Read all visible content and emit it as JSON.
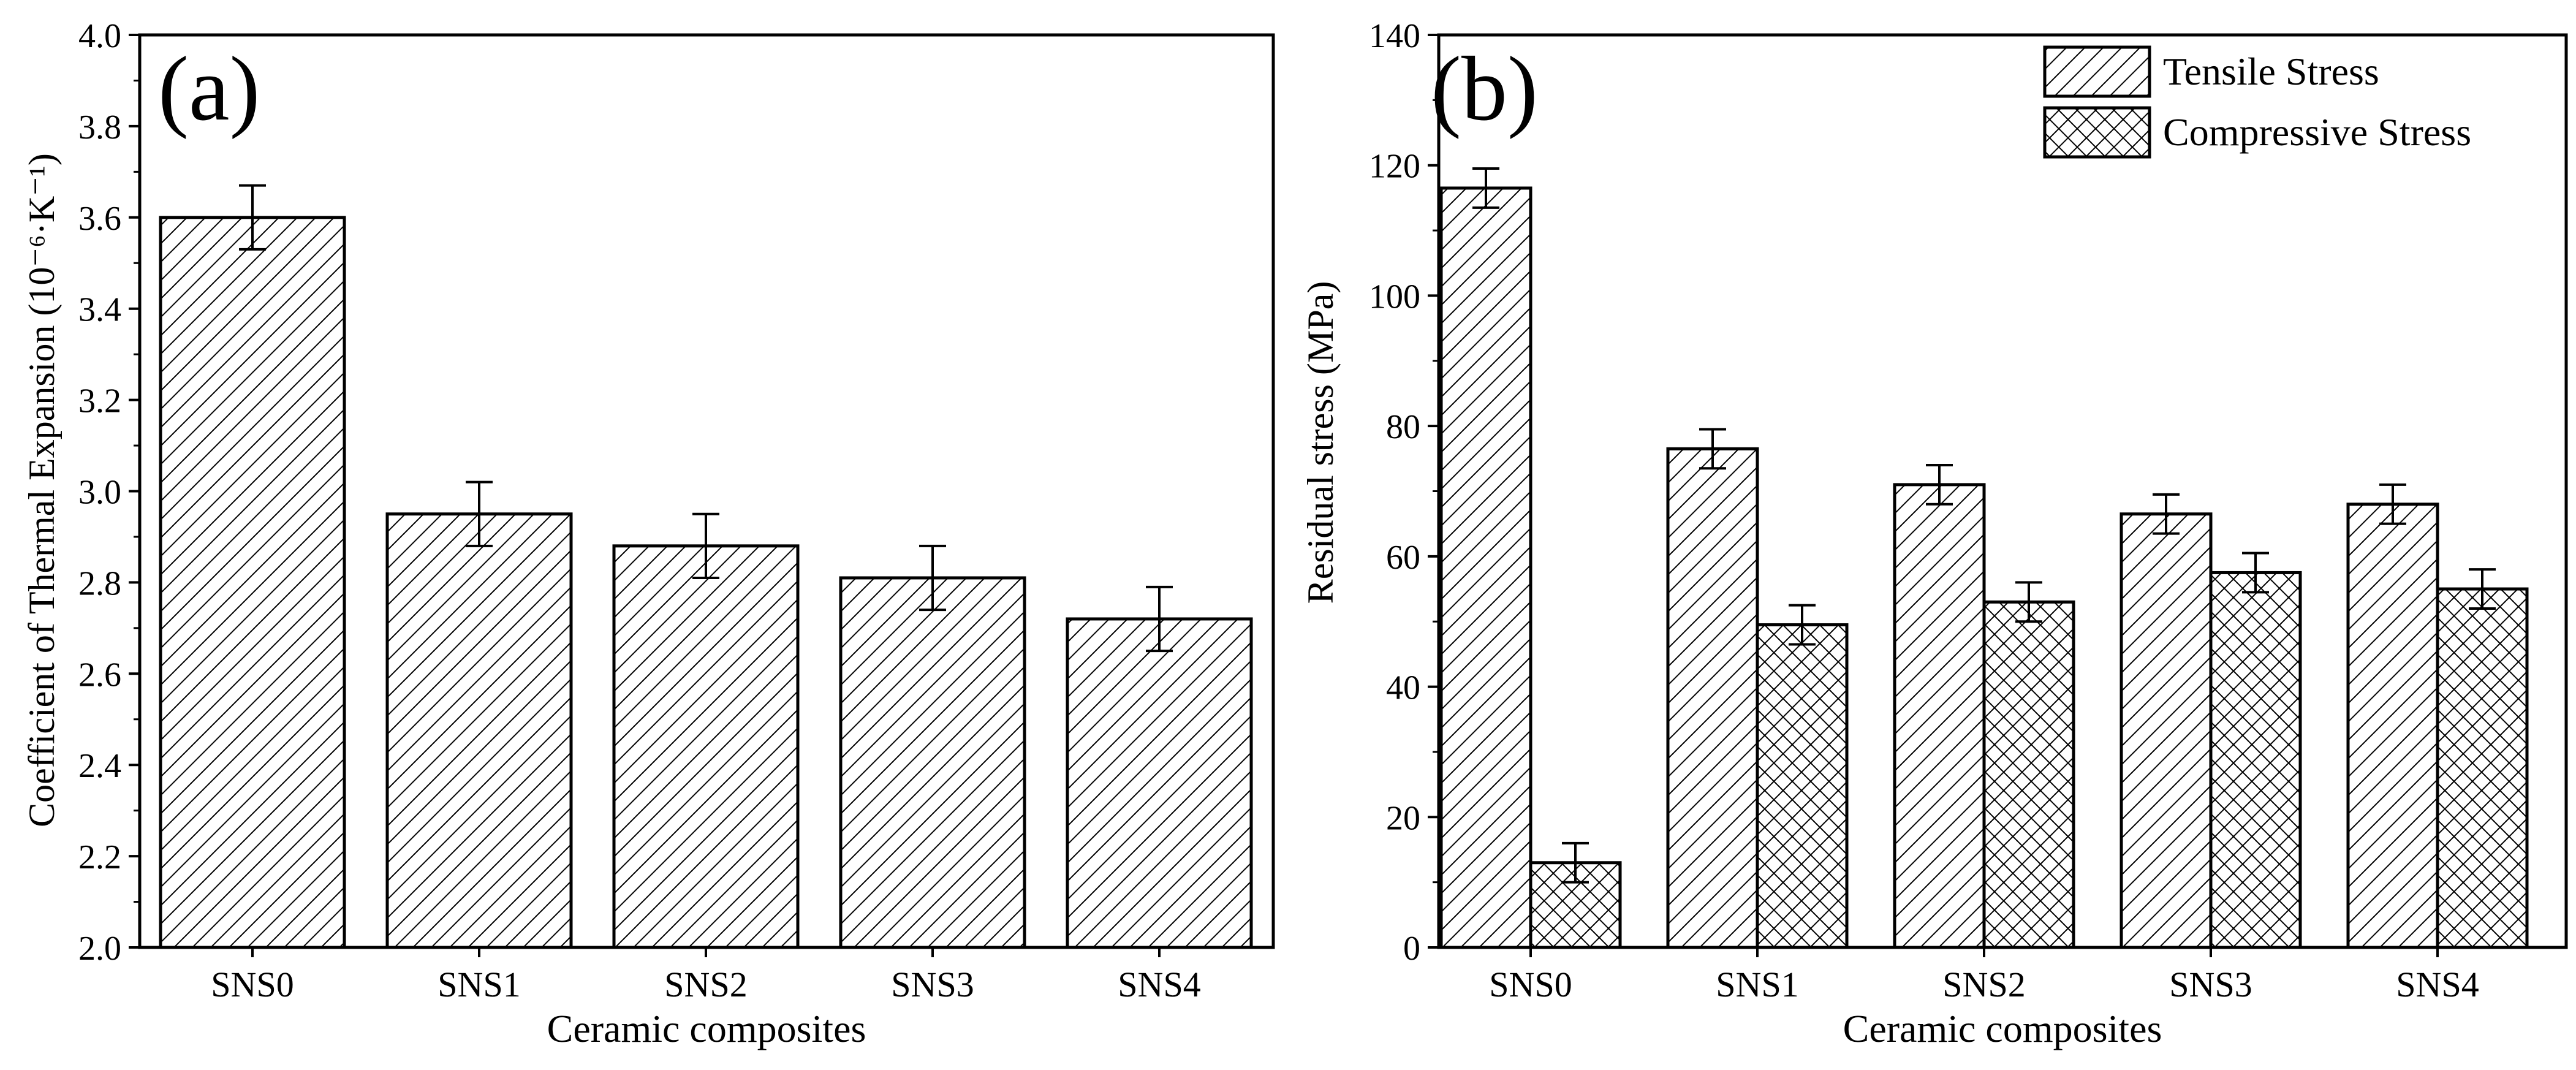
{
  "chart_data": [
    {
      "type": "bar",
      "panel_label": "(a)",
      "categories": [
        "SNS0",
        "SNS1",
        "SNS2",
        "SNS3",
        "SNS4"
      ],
      "series": [
        {
          "name": "Coefficient of Thermal Expansion",
          "values": [
            3.6,
            2.95,
            2.88,
            2.81,
            2.72
          ],
          "errors": [
            0.07,
            0.07,
            0.07,
            0.07,
            0.07
          ]
        }
      ],
      "xlabel": "Ceramic composites",
      "ylabel": "Coefficient of Thermal Expansion (10⁻⁶·K⁻¹)",
      "ylim": [
        2.0,
        4.0
      ],
      "yticks": [
        "2.0",
        "2.2",
        "2.4",
        "2.6",
        "2.8",
        "3.0",
        "3.2",
        "3.4",
        "3.6",
        "3.8",
        "4.0"
      ],
      "grid": false
    },
    {
      "type": "bar",
      "panel_label": "(b)",
      "categories": [
        "SNS0",
        "SNS1",
        "SNS2",
        "SNS3",
        "SNS4"
      ],
      "series": [
        {
          "name": "Tensile Stress",
          "values": [
            116.5,
            76.5,
            71,
            66.5,
            68
          ],
          "errors": [
            3,
            3,
            3,
            3,
            3
          ]
        },
        {
          "name": "Compressive Stress",
          "values": [
            13,
            49.5,
            53,
            57.5,
            55
          ],
          "errors": [
            3,
            3,
            3,
            3,
            3
          ]
        }
      ],
      "xlabel": "Ceramic composites",
      "ylabel": "Residual stress (MPa)",
      "ylim": [
        0,
        140
      ],
      "yticks": [
        "0",
        "20",
        "40",
        "60",
        "80",
        "100",
        "120",
        "140"
      ],
      "legend_position": "top-right",
      "grid": false
    }
  ]
}
